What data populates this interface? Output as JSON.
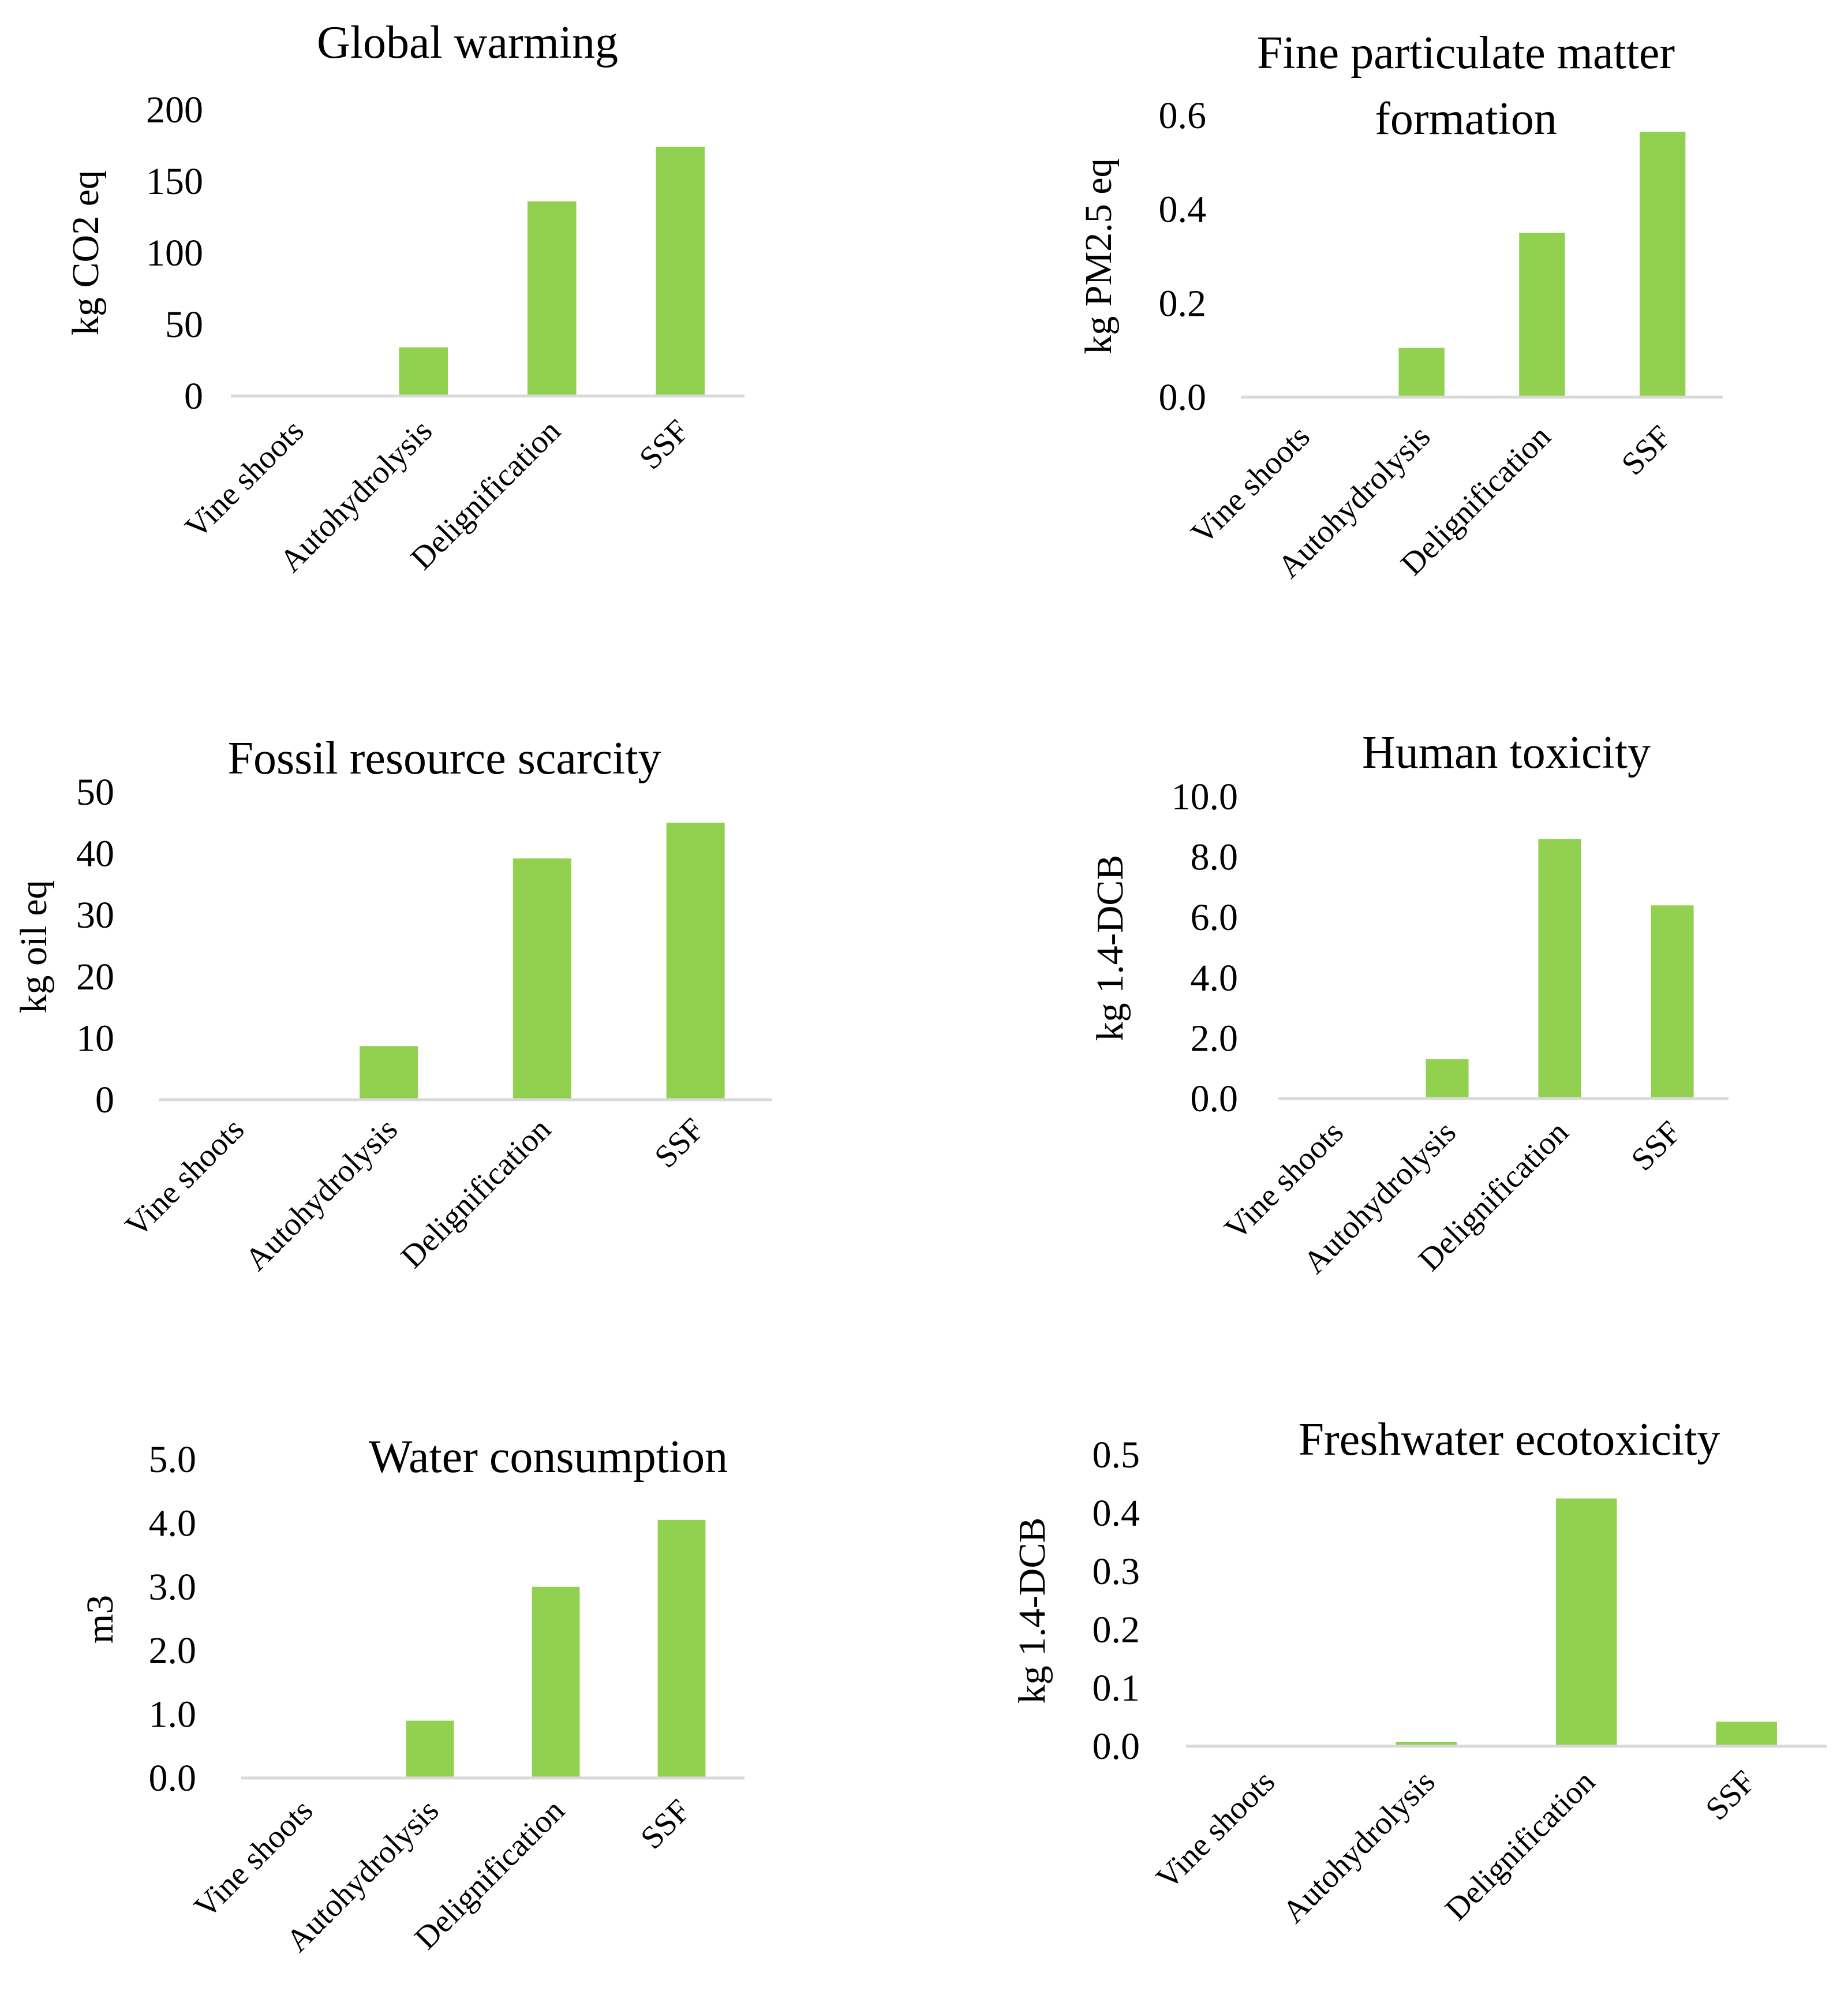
{
  "colors": {
    "bar": "#92d050",
    "axis_line": "#d9d9d9",
    "text": "#000000"
  },
  "chart_data": [
    {
      "type": "bar",
      "title": "Global warming",
      "ylabel": "kg CO2 eq",
      "categories": [
        "Vine shoots",
        "Autohydrolysis",
        "Delignification",
        "SSF"
      ],
      "values": [
        0,
        34,
        136,
        174
      ],
      "ylim": [
        0,
        200
      ],
      "yticks": [
        "0",
        "50",
        "100",
        "150",
        "200"
      ],
      "grid": false,
      "legend": "none"
    },
    {
      "type": "bar",
      "title": "Fine particulate matter formation",
      "ylabel": "kg PM2.5 eq",
      "categories": [
        "Vine shoots",
        "Autohydrolysis",
        "Delignification",
        "SSF"
      ],
      "values": [
        0,
        0.105,
        0.35,
        0.565
      ],
      "ylim": [
        0,
        0.6
      ],
      "yticks": [
        "0.0",
        "0.2",
        "0.4",
        "0.6"
      ],
      "grid": false,
      "legend": "none"
    },
    {
      "type": "bar",
      "title": "Fossil resource scarcity",
      "ylabel": "kg oil eq",
      "categories": [
        "Vine shoots",
        "Autohydrolysis",
        "Delignification",
        "SSF"
      ],
      "values": [
        0,
        8.7,
        39.2,
        45
      ],
      "ylim": [
        0,
        50
      ],
      "yticks": [
        "0",
        "10",
        "20",
        "30",
        "40",
        "50"
      ],
      "grid": false,
      "legend": "none"
    },
    {
      "type": "bar",
      "title": "Human toxicity",
      "ylabel": "kg 1.4-DCB",
      "categories": [
        "Vine shoots",
        "Autohydrolysis",
        "Delignification",
        "SSF"
      ],
      "values": [
        0,
        1.3,
        8.6,
        6.4
      ],
      "ylim": [
        0,
        10
      ],
      "yticks": [
        "0.0",
        "2.0",
        "4.0",
        "6.0",
        "8.0",
        "10.0"
      ],
      "grid": false,
      "legend": "none"
    },
    {
      "type": "bar",
      "title": "Water consumption",
      "ylabel": "m3",
      "categories": [
        "Vine shoots",
        "Autohydrolysis",
        "Delignification",
        "SSF"
      ],
      "values": [
        0,
        0.9,
        3.0,
        4.05
      ],
      "ylim": [
        0,
        5
      ],
      "yticks": [
        "0.0",
        "1.0",
        "2.0",
        "3.0",
        "4.0",
        "5.0"
      ],
      "grid": false,
      "legend": "none"
    },
    {
      "type": "bar",
      "title": "Freshwater ecotoxicity",
      "ylabel": "kg 1.4-DCB",
      "categories": [
        "Vine shoots",
        "Autohydrolysis",
        "Delignification",
        "SSF"
      ],
      "values": [
        0,
        0.007,
        0.425,
        0.042
      ],
      "ylim": [
        0,
        0.5
      ],
      "yticks": [
        "0.0",
        "0.1",
        "0.2",
        "0.3",
        "0.4",
        "0.5"
      ],
      "grid": false,
      "legend": "none"
    }
  ]
}
